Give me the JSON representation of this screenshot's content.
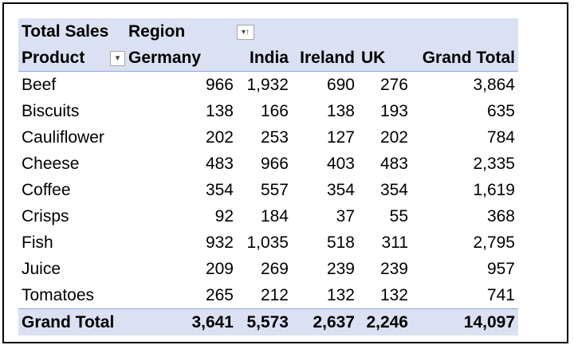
{
  "pivot": {
    "values_field": "Total Sales",
    "column_field": "Region",
    "row_field": "Product",
    "filter_icons": {
      "product": "dropdown-arrow-icon",
      "region": "filter-sort-icon"
    },
    "filter_glyphs": {
      "product": "▾",
      "region": "▾↑"
    },
    "columns": [
      "Germany",
      "India",
      "Ireland",
      "UK",
      "Grand Total"
    ],
    "rows": [
      {
        "label": "Beef",
        "values": [
          "966",
          "1,932",
          "690",
          "276",
          "3,864"
        ]
      },
      {
        "label": "Biscuits",
        "values": [
          "138",
          "166",
          "138",
          "193",
          "635"
        ]
      },
      {
        "label": "Cauliflower",
        "values": [
          "202",
          "253",
          "127",
          "202",
          "784"
        ]
      },
      {
        "label": "Cheese",
        "values": [
          "483",
          "966",
          "403",
          "483",
          "2,335"
        ]
      },
      {
        "label": "Coffee",
        "values": [
          "354",
          "557",
          "354",
          "354",
          "1,619"
        ]
      },
      {
        "label": "Crisps",
        "values": [
          "92",
          "184",
          "37",
          "55",
          "368"
        ]
      },
      {
        "label": "Fish",
        "values": [
          "932",
          "1,035",
          "518",
          "311",
          "2,795"
        ]
      },
      {
        "label": "Juice",
        "values": [
          "209",
          "269",
          "239",
          "239",
          "957"
        ]
      },
      {
        "label": "Tomatoes",
        "values": [
          "265",
          "212",
          "132",
          "132",
          "741"
        ]
      }
    ],
    "grand_total": {
      "label": "Grand Total",
      "values": [
        "3,641",
        "5,573",
        "2,637",
        "2,246",
        "14,097"
      ]
    },
    "colors": {
      "header_band": "#d9e1f2",
      "band_border": "#8ea9db",
      "frame_border": "#000000"
    }
  }
}
